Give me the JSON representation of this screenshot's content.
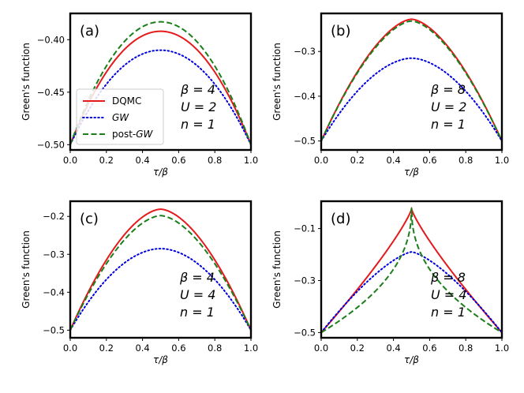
{
  "figure": {
    "background": "#ffffff"
  },
  "colors": {
    "DQMC": "#e41a1c",
    "GW": "#0000dd",
    "postGW": "#1a7f1a",
    "axes": "#000000"
  },
  "legend": [
    {
      "key": "DQMC",
      "label": "DQMC",
      "style": "solid"
    },
    {
      "key": "GW",
      "label": "GW",
      "style": "dotted"
    },
    {
      "key": "postGW",
      "label": "post-GW",
      "style": "dashed"
    }
  ],
  "chart_data": [
    {
      "type": "line",
      "panel": "(a)",
      "xlabel": "τ/β",
      "ylabel": "Green's function",
      "xlim": [
        0.0,
        1.0
      ],
      "ylim": [
        -0.505,
        -0.375
      ],
      "xticks": [
        0.0,
        0.2,
        0.4,
        0.6,
        0.8,
        1.0
      ],
      "xtick_labels": [
        "0.0",
        "0.2",
        "0.4",
        "0.6",
        "0.8",
        "1.0"
      ],
      "yticks": [
        -0.5,
        -0.45,
        -0.4
      ],
      "ytick_labels": [
        "−0.50",
        "−0.45",
        "−0.40"
      ],
      "params": [
        "β = 4",
        "U = 2",
        "n = 1"
      ],
      "has_legend": true,
      "series": [
        {
          "name": "DQMC",
          "edge": -0.5,
          "mid": -0.392,
          "p": 1.0
        },
        {
          "name": "GW",
          "edge": -0.5,
          "mid": -0.41,
          "p": 1.0
        },
        {
          "name": "post-GW",
          "edge": -0.5,
          "mid": -0.383,
          "p": 1.0
        }
      ]
    },
    {
      "type": "line",
      "panel": "(b)",
      "xlabel": "τ/β",
      "ylabel": "Green's function",
      "xlim": [
        0.0,
        1.0
      ],
      "ylim": [
        -0.52,
        -0.215
      ],
      "xticks": [
        0.0,
        0.2,
        0.4,
        0.6,
        0.8,
        1.0
      ],
      "xtick_labels": [
        "0.0",
        "0.2",
        "0.4",
        "0.6",
        "0.8",
        "1.0"
      ],
      "yticks": [
        -0.5,
        -0.4,
        -0.3
      ],
      "ytick_labels": [
        "−0.5",
        "−0.4",
        "−0.3"
      ],
      "params": [
        "β = 8",
        "U = 2",
        "n = 1"
      ],
      "has_legend": false,
      "series": [
        {
          "name": "DQMC",
          "edge": -0.5,
          "mid": -0.228,
          "p": 0.82
        },
        {
          "name": "GW",
          "edge": -0.5,
          "mid": -0.315,
          "p": 0.9
        },
        {
          "name": "post-GW",
          "edge": -0.5,
          "mid": -0.232,
          "p": 0.82
        }
      ]
    },
    {
      "type": "line",
      "panel": "(c)",
      "xlabel": "τ/β",
      "ylabel": "Green's function",
      "xlim": [
        0.0,
        1.0
      ],
      "ylim": [
        -0.52,
        -0.16
      ],
      "xticks": [
        0.0,
        0.2,
        0.4,
        0.6,
        0.8,
        1.0
      ],
      "xtick_labels": [
        "0.0",
        "0.2",
        "0.4",
        "0.6",
        "0.8",
        "1.0"
      ],
      "yticks": [
        -0.5,
        -0.4,
        -0.3,
        -0.2
      ],
      "ytick_labels": [
        "−0.5",
        "−0.4",
        "−0.3",
        "−0.2"
      ],
      "params": [
        "β = 4",
        "U = 4",
        "n = 1"
      ],
      "has_legend": false,
      "series": [
        {
          "name": "DQMC",
          "edge": -0.5,
          "mid": -0.181,
          "p": 0.85
        },
        {
          "name": "GW",
          "edge": -0.5,
          "mid": -0.285,
          "p": 0.95
        },
        {
          "name": "post-GW",
          "edge": -0.5,
          "mid": -0.198,
          "p": 0.85
        }
      ]
    },
    {
      "type": "line",
      "panel": "(d)",
      "xlabel": "τ/β",
      "ylabel": "Green's function",
      "xlim": [
        0.0,
        1.0
      ],
      "ylim": [
        -0.52,
        0.005
      ],
      "xticks": [
        0.0,
        0.2,
        0.4,
        0.6,
        0.8,
        1.0
      ],
      "xtick_labels": [
        "0.0",
        "0.2",
        "0.4",
        "0.6",
        "0.8",
        "1.0"
      ],
      "yticks": [
        -0.5,
        -0.3,
        -0.1
      ],
      "ytick_labels": [
        "−0.5",
        "−0.3",
        "−0.1"
      ],
      "params": [
        "β = 8",
        "U = 4",
        "n = 1"
      ],
      "has_legend": false,
      "series": [
        {
          "name": "DQMC",
          "edge": -0.5,
          "mid": -0.025,
          "p": 0.42
        },
        {
          "name": "GW",
          "edge": -0.5,
          "mid": -0.19,
          "p": 0.7
        },
        {
          "name": "post-GW",
          "edge": -0.5,
          "mid": -0.02,
          "p": 0.22
        }
      ]
    }
  ]
}
